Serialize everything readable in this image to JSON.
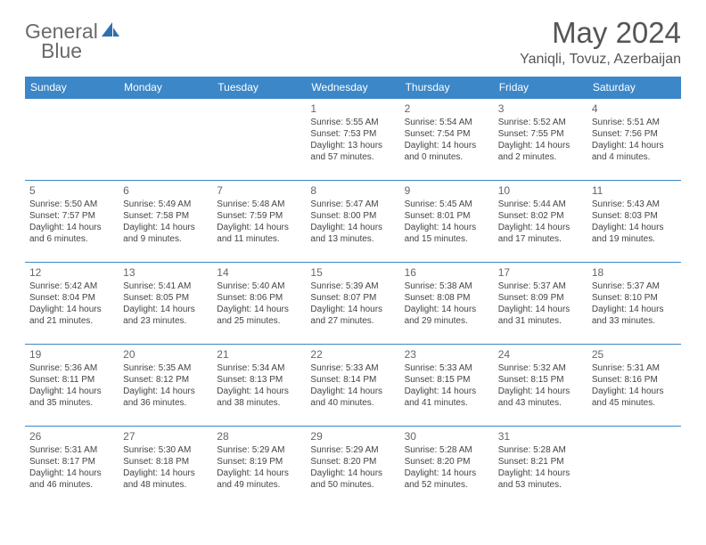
{
  "logo": {
    "text_a": "General",
    "text_b": "Blue"
  },
  "title": "May 2024",
  "location": "Yaniqli, Tovuz, Azerbaijan",
  "colors": {
    "header_bg": "#3b87c8",
    "header_text": "#ffffff",
    "border": "#3b87c8",
    "logo_gray": "#6a6a6a",
    "logo_blue": "#2f6fae"
  },
  "weekdays": [
    "Sunday",
    "Monday",
    "Tuesday",
    "Wednesday",
    "Thursday",
    "Friday",
    "Saturday"
  ],
  "weeks": [
    [
      {
        "n": "",
        "lines": []
      },
      {
        "n": "",
        "lines": []
      },
      {
        "n": "",
        "lines": []
      },
      {
        "n": "1",
        "lines": [
          "Sunrise: 5:55 AM",
          "Sunset: 7:53 PM",
          "Daylight: 13 hours and 57 minutes."
        ]
      },
      {
        "n": "2",
        "lines": [
          "Sunrise: 5:54 AM",
          "Sunset: 7:54 PM",
          "Daylight: 14 hours and 0 minutes."
        ]
      },
      {
        "n": "3",
        "lines": [
          "Sunrise: 5:52 AM",
          "Sunset: 7:55 PM",
          "Daylight: 14 hours and 2 minutes."
        ]
      },
      {
        "n": "4",
        "lines": [
          "Sunrise: 5:51 AM",
          "Sunset: 7:56 PM",
          "Daylight: 14 hours and 4 minutes."
        ]
      }
    ],
    [
      {
        "n": "5",
        "lines": [
          "Sunrise: 5:50 AM",
          "Sunset: 7:57 PM",
          "Daylight: 14 hours and 6 minutes."
        ]
      },
      {
        "n": "6",
        "lines": [
          "Sunrise: 5:49 AM",
          "Sunset: 7:58 PM",
          "Daylight: 14 hours and 9 minutes."
        ]
      },
      {
        "n": "7",
        "lines": [
          "Sunrise: 5:48 AM",
          "Sunset: 7:59 PM",
          "Daylight: 14 hours and 11 minutes."
        ]
      },
      {
        "n": "8",
        "lines": [
          "Sunrise: 5:47 AM",
          "Sunset: 8:00 PM",
          "Daylight: 14 hours and 13 minutes."
        ]
      },
      {
        "n": "9",
        "lines": [
          "Sunrise: 5:45 AM",
          "Sunset: 8:01 PM",
          "Daylight: 14 hours and 15 minutes."
        ]
      },
      {
        "n": "10",
        "lines": [
          "Sunrise: 5:44 AM",
          "Sunset: 8:02 PM",
          "Daylight: 14 hours and 17 minutes."
        ]
      },
      {
        "n": "11",
        "lines": [
          "Sunrise: 5:43 AM",
          "Sunset: 8:03 PM",
          "Daylight: 14 hours and 19 minutes."
        ]
      }
    ],
    [
      {
        "n": "12",
        "lines": [
          "Sunrise: 5:42 AM",
          "Sunset: 8:04 PM",
          "Daylight: 14 hours and 21 minutes."
        ]
      },
      {
        "n": "13",
        "lines": [
          "Sunrise: 5:41 AM",
          "Sunset: 8:05 PM",
          "Daylight: 14 hours and 23 minutes."
        ]
      },
      {
        "n": "14",
        "lines": [
          "Sunrise: 5:40 AM",
          "Sunset: 8:06 PM",
          "Daylight: 14 hours and 25 minutes."
        ]
      },
      {
        "n": "15",
        "lines": [
          "Sunrise: 5:39 AM",
          "Sunset: 8:07 PM",
          "Daylight: 14 hours and 27 minutes."
        ]
      },
      {
        "n": "16",
        "lines": [
          "Sunrise: 5:38 AM",
          "Sunset: 8:08 PM",
          "Daylight: 14 hours and 29 minutes."
        ]
      },
      {
        "n": "17",
        "lines": [
          "Sunrise: 5:37 AM",
          "Sunset: 8:09 PM",
          "Daylight: 14 hours and 31 minutes."
        ]
      },
      {
        "n": "18",
        "lines": [
          "Sunrise: 5:37 AM",
          "Sunset: 8:10 PM",
          "Daylight: 14 hours and 33 minutes."
        ]
      }
    ],
    [
      {
        "n": "19",
        "lines": [
          "Sunrise: 5:36 AM",
          "Sunset: 8:11 PM",
          "Daylight: 14 hours and 35 minutes."
        ]
      },
      {
        "n": "20",
        "lines": [
          "Sunrise: 5:35 AM",
          "Sunset: 8:12 PM",
          "Daylight: 14 hours and 36 minutes."
        ]
      },
      {
        "n": "21",
        "lines": [
          "Sunrise: 5:34 AM",
          "Sunset: 8:13 PM",
          "Daylight: 14 hours and 38 minutes."
        ]
      },
      {
        "n": "22",
        "lines": [
          "Sunrise: 5:33 AM",
          "Sunset: 8:14 PM",
          "Daylight: 14 hours and 40 minutes."
        ]
      },
      {
        "n": "23",
        "lines": [
          "Sunrise: 5:33 AM",
          "Sunset: 8:15 PM",
          "Daylight: 14 hours and 41 minutes."
        ]
      },
      {
        "n": "24",
        "lines": [
          "Sunrise: 5:32 AM",
          "Sunset: 8:15 PM",
          "Daylight: 14 hours and 43 minutes."
        ]
      },
      {
        "n": "25",
        "lines": [
          "Sunrise: 5:31 AM",
          "Sunset: 8:16 PM",
          "Daylight: 14 hours and 45 minutes."
        ]
      }
    ],
    [
      {
        "n": "26",
        "lines": [
          "Sunrise: 5:31 AM",
          "Sunset: 8:17 PM",
          "Daylight: 14 hours and 46 minutes."
        ]
      },
      {
        "n": "27",
        "lines": [
          "Sunrise: 5:30 AM",
          "Sunset: 8:18 PM",
          "Daylight: 14 hours and 48 minutes."
        ]
      },
      {
        "n": "28",
        "lines": [
          "Sunrise: 5:29 AM",
          "Sunset: 8:19 PM",
          "Daylight: 14 hours and 49 minutes."
        ]
      },
      {
        "n": "29",
        "lines": [
          "Sunrise: 5:29 AM",
          "Sunset: 8:20 PM",
          "Daylight: 14 hours and 50 minutes."
        ]
      },
      {
        "n": "30",
        "lines": [
          "Sunrise: 5:28 AM",
          "Sunset: 8:20 PM",
          "Daylight: 14 hours and 52 minutes."
        ]
      },
      {
        "n": "31",
        "lines": [
          "Sunrise: 5:28 AM",
          "Sunset: 8:21 PM",
          "Daylight: 14 hours and 53 minutes."
        ]
      },
      {
        "n": "",
        "lines": []
      }
    ]
  ]
}
